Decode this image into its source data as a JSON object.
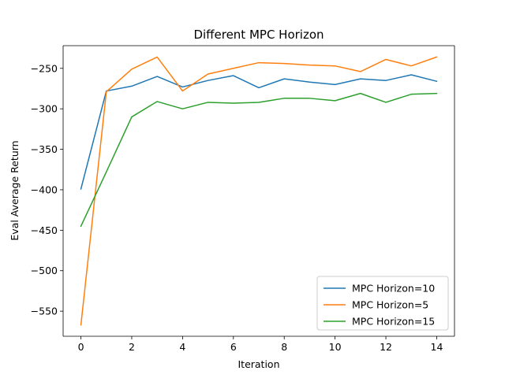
{
  "chart_data": {
    "type": "line",
    "title": "Different MPC Horizon",
    "xlabel": "Iteration",
    "ylabel": "Eval Average Return",
    "xlim": [
      -0.7,
      14.7
    ],
    "ylim": [
      -581,
      -222
    ],
    "xticks": [
      0,
      2,
      4,
      6,
      8,
      10,
      12,
      14
    ],
    "xtick_labels": [
      "0",
      "2",
      "4",
      "6",
      "8",
      "10",
      "12",
      "14"
    ],
    "yticks": [
      -550,
      -500,
      -450,
      -400,
      -350,
      -300,
      -250
    ],
    "ytick_labels": [
      "−550",
      "−500",
      "−450",
      "−400",
      "−350",
      "−300",
      "−250"
    ],
    "grid": false,
    "legend_position": "lower-right",
    "x": [
      0,
      1,
      2,
      3,
      4,
      5,
      6,
      7,
      8,
      9,
      10,
      11,
      12,
      13,
      14
    ],
    "series": [
      {
        "name": "MPC Horizon=10",
        "color": "#1f77b4",
        "values": [
          -399,
          -278,
          -272,
          -260,
          -273,
          -265,
          -259,
          -274,
          -263,
          -267,
          -270,
          -263,
          -265,
          -258,
          -266
        ]
      },
      {
        "name": "MPC Horizon=5",
        "color": "#ff7f0e",
        "values": [
          -567,
          -279,
          -251,
          -236,
          -278,
          -257,
          -250,
          -243,
          -244,
          -246,
          -247,
          -254,
          -239,
          -247,
          -236
        ]
      },
      {
        "name": "MPC Horizon=15",
        "color": "#2ca02c",
        "values": [
          -445,
          -378,
          -310,
          -291,
          -300,
          -292,
          -293,
          -292,
          -287,
          -287,
          -290,
          -281,
          -292,
          -282,
          -281
        ]
      }
    ]
  }
}
